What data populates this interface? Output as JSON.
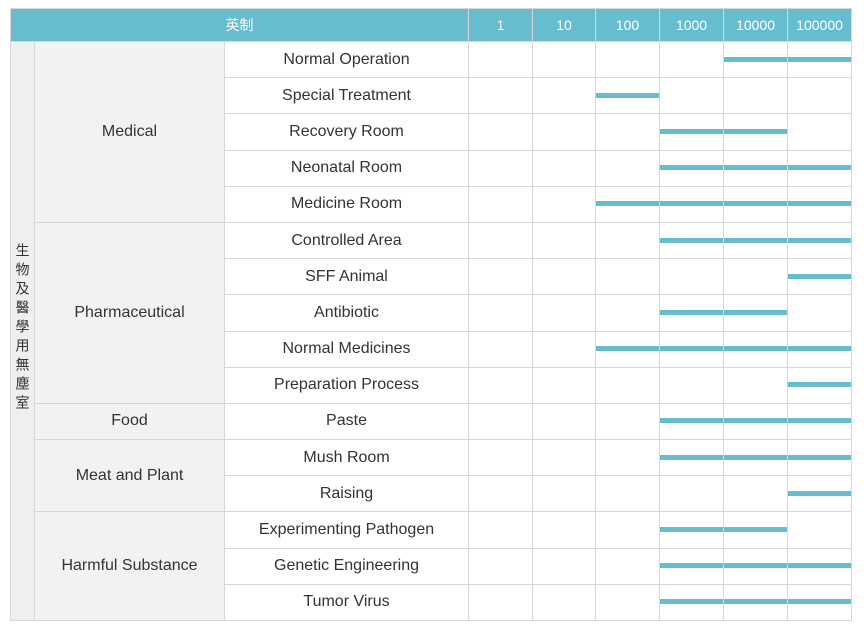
{
  "table": {
    "header": {
      "title": "英制",
      "classes": [
        "1",
        "10",
        "100",
        "1000",
        "10000",
        "100000"
      ]
    },
    "industry_label": "生物及醫學用無塵室",
    "bar_color": "#67bccf",
    "header_color": "#67bccf",
    "groups": [
      {
        "category": "Medical",
        "rows": [
          {
            "name": "Normal Operation",
            "bars": [
              false,
              false,
              false,
              false,
              true,
              true
            ]
          },
          {
            "name": "Special Treatment",
            "bars": [
              false,
              false,
              true,
              false,
              false,
              false
            ]
          },
          {
            "name": "Recovery Room",
            "bars": [
              false,
              false,
              false,
              true,
              true,
              false
            ]
          },
          {
            "name": "Neonatal Room",
            "bars": [
              false,
              false,
              false,
              true,
              true,
              true
            ]
          },
          {
            "name": "Medicine Room",
            "bars": [
              false,
              false,
              true,
              true,
              true,
              true
            ]
          }
        ]
      },
      {
        "category": "Pharmaceutical",
        "rows": [
          {
            "name": "Controlled Area",
            "bars": [
              false,
              false,
              false,
              true,
              true,
              true
            ]
          },
          {
            "name": "SFF Animal",
            "bars": [
              false,
              false,
              false,
              false,
              false,
              true
            ]
          },
          {
            "name": "Antibiotic",
            "bars": [
              false,
              false,
              false,
              true,
              true,
              false
            ]
          },
          {
            "name": "Normal Medicines",
            "bars": [
              false,
              false,
              true,
              true,
              true,
              true
            ]
          },
          {
            "name": "Preparation Process",
            "bars": [
              false,
              false,
              false,
              false,
              false,
              true
            ]
          }
        ]
      },
      {
        "category": "Food",
        "rows": [
          {
            "name": "Paste",
            "bars": [
              false,
              false,
              false,
              true,
              true,
              true
            ]
          }
        ]
      },
      {
        "category": "Meat and Plant",
        "rows": [
          {
            "name": "Mush Room",
            "bars": [
              false,
              false,
              false,
              true,
              true,
              true
            ]
          },
          {
            "name": "Raising",
            "bars": [
              false,
              false,
              false,
              false,
              false,
              true
            ]
          }
        ]
      },
      {
        "category": "Harmful Substance",
        "rows": [
          {
            "name": "Experimenting Pathogen",
            "bars": [
              false,
              false,
              false,
              true,
              true,
              false
            ]
          },
          {
            "name": "Genetic Engineering",
            "bars": [
              false,
              false,
              false,
              true,
              true,
              true
            ]
          },
          {
            "name": "Tumor Virus",
            "bars": [
              false,
              false,
              false,
              true,
              true,
              true
            ]
          }
        ]
      }
    ]
  }
}
